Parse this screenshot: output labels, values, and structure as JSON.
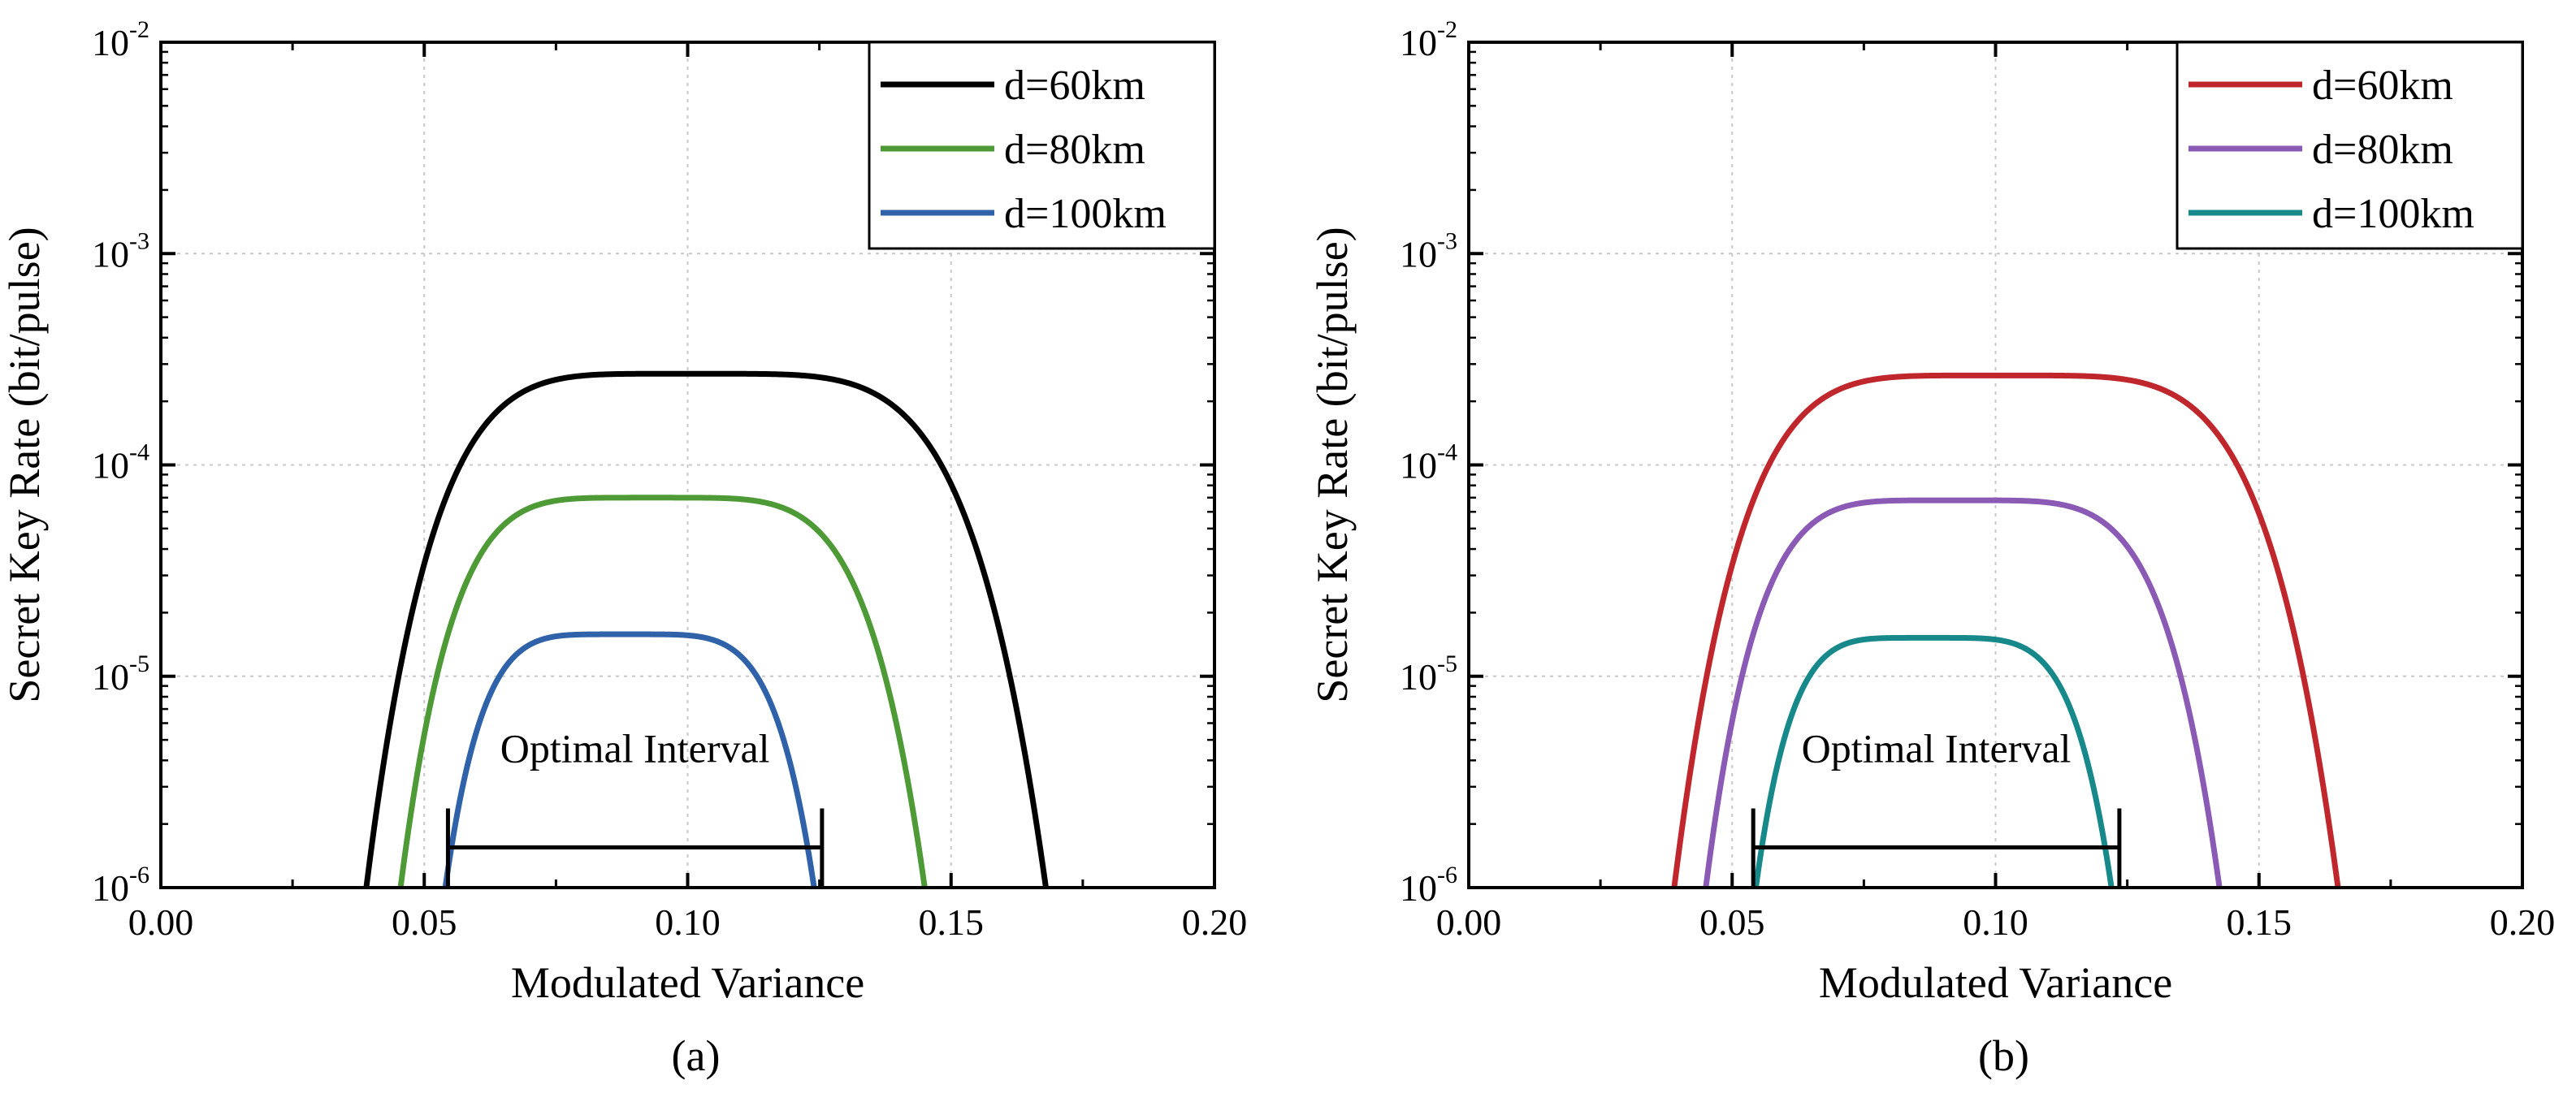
{
  "chart_data": [
    {
      "type": "line",
      "panel_label": "(a)",
      "xlabel": "Modulated Variance",
      "ylabel": "Secret Key Rate (bit/pulse)",
      "xscale": "linear",
      "yscale": "log",
      "xlim": [
        0.0,
        0.2
      ],
      "ylim": [
        1e-06,
        0.01
      ],
      "xticks": [
        "0.00",
        "0.05",
        "0.10",
        "0.15",
        "0.20"
      ],
      "yticks": [
        {
          "base": "10",
          "exp": "-6"
        },
        {
          "base": "10",
          "exp": "-5"
        },
        {
          "base": "10",
          "exp": "-4"
        },
        {
          "base": "10",
          "exp": "-3"
        },
        {
          "base": "10",
          "exp": "-2"
        }
      ],
      "grid": true,
      "legend_position": "top-right",
      "series": [
        {
          "name": "d=60km",
          "color": "#000000",
          "x_min": 0.039,
          "x_max": 0.168,
          "peak_x": 0.1,
          "peak_y": 0.00027
        },
        {
          "name": "d=80km",
          "color": "#4e9a37",
          "x_min": 0.0455,
          "x_max": 0.145,
          "peak_x": 0.093,
          "peak_y": 7e-05
        },
        {
          "name": "d=100km",
          "color": "#2f62a8",
          "x_min": 0.054,
          "x_max": 0.124,
          "peak_x": 0.088,
          "peak_y": 1.58e-05
        }
      ],
      "annotation": {
        "text": "Optimal Interval",
        "x_start": 0.0545,
        "x_end": 0.1255,
        "y": 1.55e-06
      }
    },
    {
      "type": "line",
      "panel_label": "(b)",
      "xlabel": "Modulated Variance",
      "ylabel": "Secret Key Rate (bit/pulse)",
      "xscale": "linear",
      "yscale": "log",
      "xlim": [
        0.0,
        0.2
      ],
      "ylim": [
        1e-06,
        0.01
      ],
      "xticks": [
        "0.00",
        "0.05",
        "0.10",
        "0.15",
        "0.20"
      ],
      "yticks": [
        {
          "base": "10",
          "exp": "-6"
        },
        {
          "base": "10",
          "exp": "-5"
        },
        {
          "base": "10",
          "exp": "-4"
        },
        {
          "base": "10",
          "exp": "-3"
        },
        {
          "base": "10",
          "exp": "-2"
        }
      ],
      "grid": true,
      "legend_position": "top-right",
      "series": [
        {
          "name": "d=60km",
          "color": "#c0272d",
          "x_min": 0.039,
          "x_max": 0.165,
          "peak_x": 0.1,
          "peak_y": 0.000265
        },
        {
          "name": "d=80km",
          "color": "#8a5ab4",
          "x_min": 0.045,
          "x_max": 0.1425,
          "peak_x": 0.092,
          "peak_y": 6.8e-05
        },
        {
          "name": "d=100km",
          "color": "#17898a",
          "x_min": 0.0545,
          "x_max": 0.122,
          "peak_x": 0.087,
          "peak_y": 1.52e-05
        }
      ],
      "annotation": {
        "text": "Optimal Interval",
        "x_start": 0.054,
        "x_end": 0.1235,
        "y": 1.55e-06
      }
    }
  ]
}
